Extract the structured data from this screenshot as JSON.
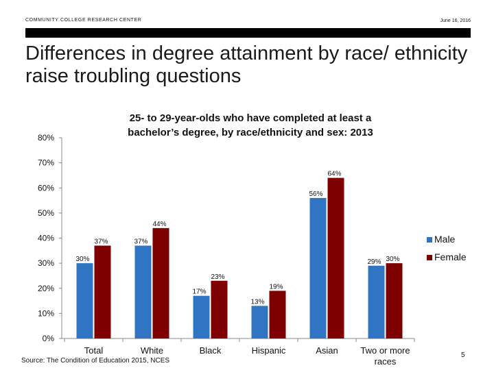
{
  "header": {
    "org": "COMMUNITY COLLEGE RESEARCH CENTER",
    "date": "June 16, 2016"
  },
  "slide": {
    "title": "Differences in degree attainment by race/ ethnicity raise troubling questions",
    "source": "Source: The Condition of Education 2015, NCES",
    "page_number": "5"
  },
  "colors": {
    "male": "#2F75C4",
    "female": "#7F0000"
  },
  "chart_data": {
    "type": "bar",
    "title_lines": [
      "25- to 29-year-olds who have completed at least a",
      "bachelor’s degree, by race/ethnicity and sex: 2013"
    ],
    "categories": [
      [
        "Total"
      ],
      [
        "White"
      ],
      [
        "Black"
      ],
      [
        "Hispanic"
      ],
      [
        "Asian"
      ],
      [
        "Two or more",
        "races"
      ]
    ],
    "series": [
      {
        "name": "Male",
        "values": [
          30,
          37,
          17,
          13,
          56,
          29
        ],
        "labels": [
          "30%",
          "37%",
          "17%",
          "13%",
          "56%",
          "29%"
        ]
      },
      {
        "name": "Female",
        "values": [
          37,
          44,
          23,
          19,
          64,
          30
        ],
        "labels": [
          "37%",
          "44%",
          "23%",
          "19%",
          "64%",
          "30%"
        ]
      }
    ],
    "y_ticks": [
      "0%",
      "10%",
      "20%",
      "30%",
      "40%",
      "50%",
      "60%",
      "70%",
      "80%"
    ],
    "ylim": [
      0,
      80
    ],
    "legend_position": "right"
  }
}
